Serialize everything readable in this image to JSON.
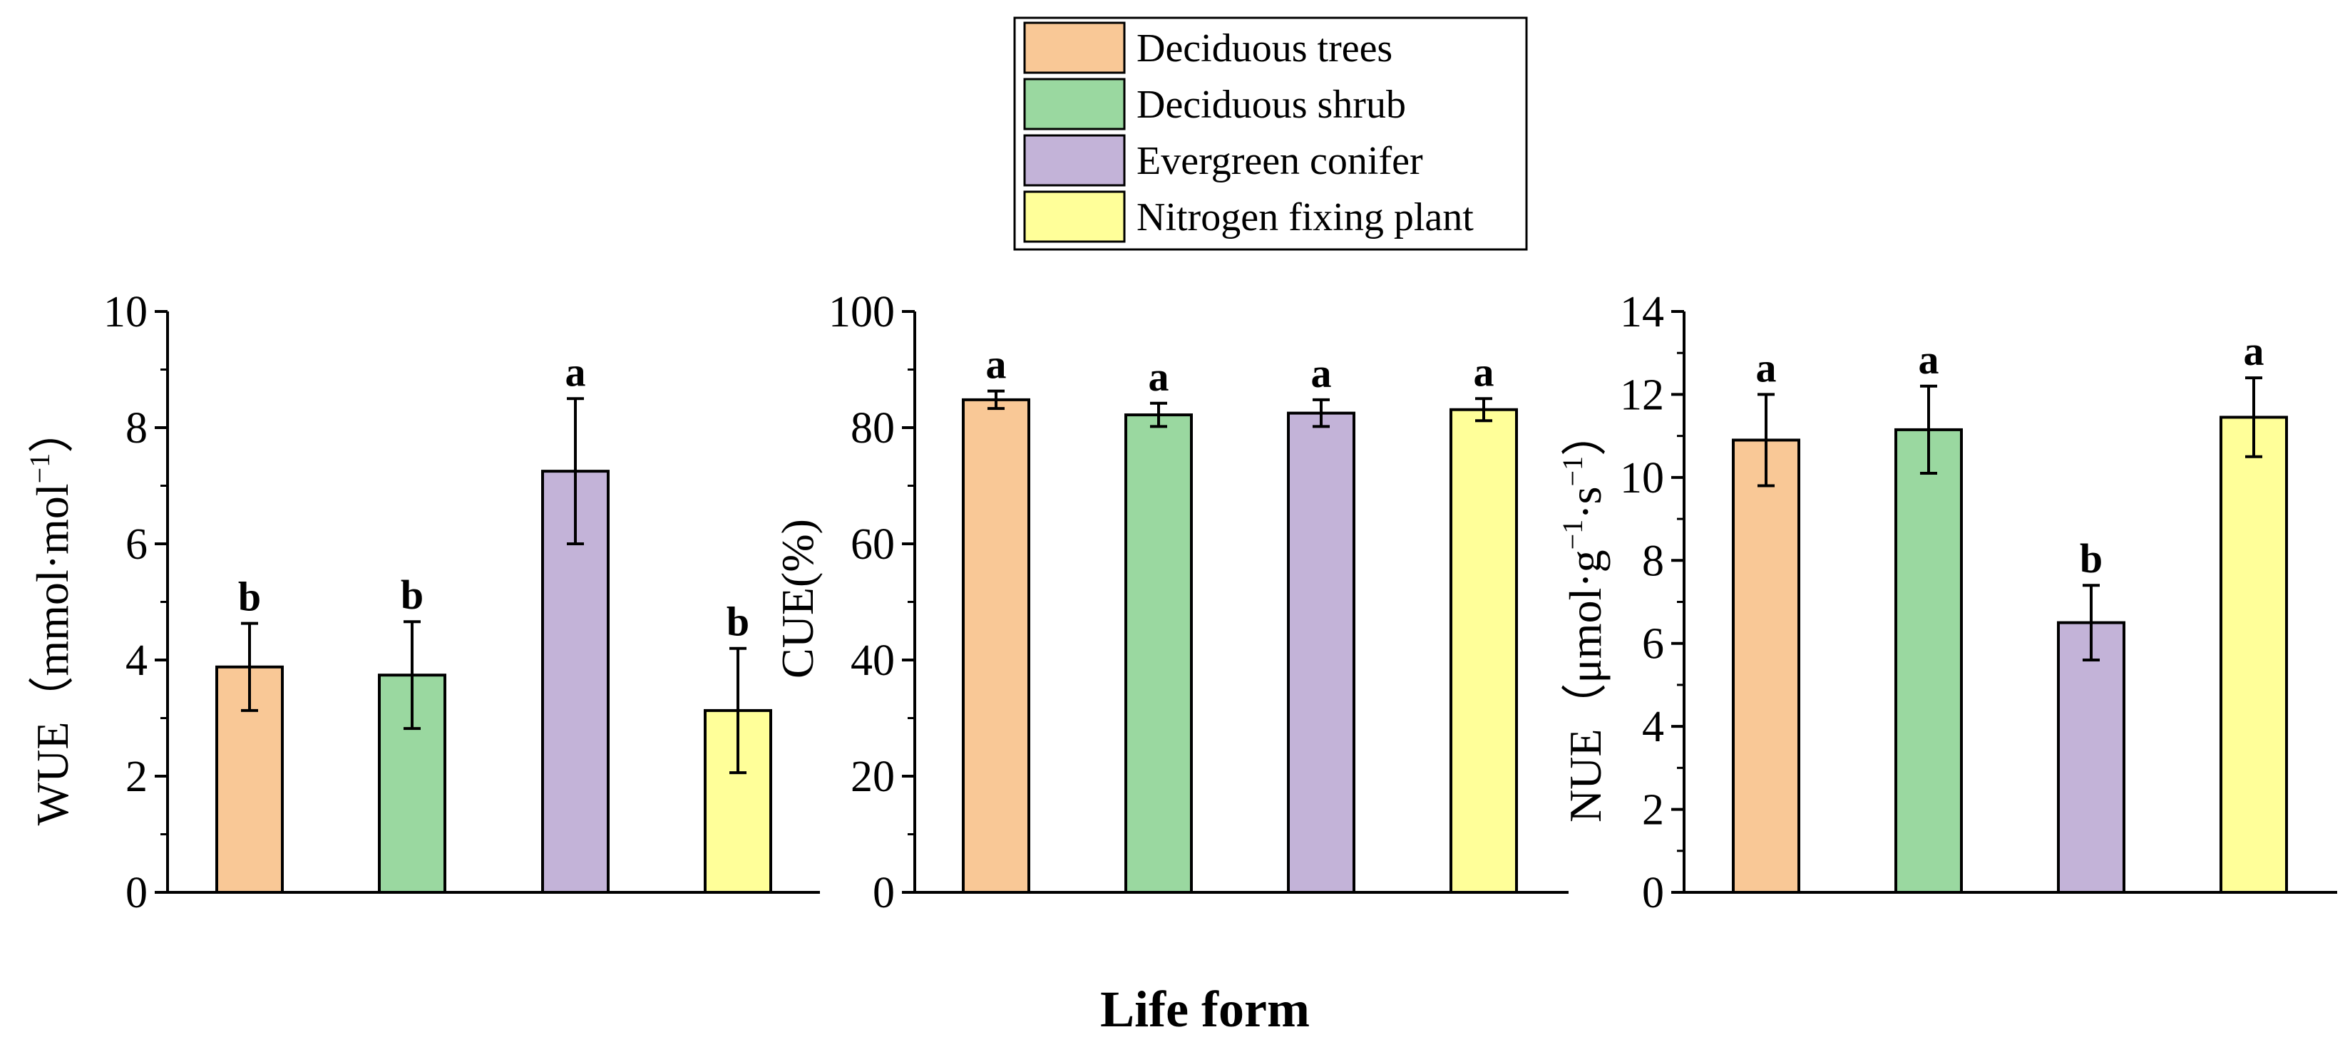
{
  "xlabel": "Life form",
  "legend": [
    {
      "label": "Deciduous trees",
      "color": "#F9C896"
    },
    {
      "label": "Deciduous shrub",
      "color": "#9AD8A0"
    },
    {
      "label": "Evergreen conifer",
      "color": "#C3B3D8"
    },
    {
      "label": "Nitrogen fixing plant",
      "color": "#FFFF99"
    }
  ],
  "chart_data": [
    {
      "type": "bar",
      "ylabel_main": "WUE",
      "ylabel_unit": "（mmol·mol",
      "ylabel_sup": "−1",
      "ylabel_close": "）",
      "ylim": [
        0,
        10
      ],
      "ticks": [
        0,
        2,
        4,
        6,
        8,
        10
      ],
      "tick_labels": [
        "0",
        "2",
        "4",
        "6",
        "8",
        "10"
      ],
      "categories": [
        "Deciduous trees",
        "Deciduous shrub",
        "Evergreen conifer",
        "Nitrogen fixing plant"
      ],
      "values": [
        3.88,
        3.74,
        7.25,
        3.13
      ],
      "errors": [
        0.75,
        0.92,
        1.25,
        1.07
      ],
      "significance": [
        "b",
        "b",
        "a",
        "b"
      ]
    },
    {
      "type": "bar",
      "ylabel_main": "CUE(%)",
      "ylabel_unit": "",
      "ylabel_sup": "",
      "ylabel_close": "",
      "ylim": [
        0,
        100
      ],
      "ticks": [
        0,
        20,
        40,
        60,
        80,
        100
      ],
      "tick_labels": [
        "0",
        "20",
        "40",
        "60",
        "80",
        "100"
      ],
      "categories": [
        "Deciduous trees",
        "Deciduous shrub",
        "Evergreen conifer",
        "Nitrogen fixing plant"
      ],
      "values": [
        84.8,
        82.2,
        82.5,
        83.1
      ],
      "errors": [
        1.5,
        2.0,
        2.3,
        1.9
      ],
      "significance": [
        "a",
        "a",
        "a",
        "a"
      ]
    },
    {
      "type": "bar",
      "ylabel_main": "NUE",
      "ylabel_unit": "（μmol·g",
      "ylabel_sup": "−1",
      "ylabel_mid": "·s",
      "ylabel_sup2": "−1",
      "ylabel_close": "）",
      "ylim": [
        0,
        14
      ],
      "ticks": [
        0,
        2,
        4,
        6,
        8,
        10,
        12,
        14
      ],
      "tick_labels": [
        "0",
        "2",
        "4",
        "6",
        "8",
        "10",
        "12",
        "14"
      ],
      "categories": [
        "Deciduous trees",
        "Deciduous shrub",
        "Evergreen conifer",
        "Nitrogen fixing plant"
      ],
      "values": [
        10.9,
        11.15,
        6.5,
        11.45
      ],
      "errors": [
        1.1,
        1.05,
        0.9,
        0.95
      ],
      "significance": [
        "a",
        "a",
        "b",
        "a"
      ]
    }
  ]
}
